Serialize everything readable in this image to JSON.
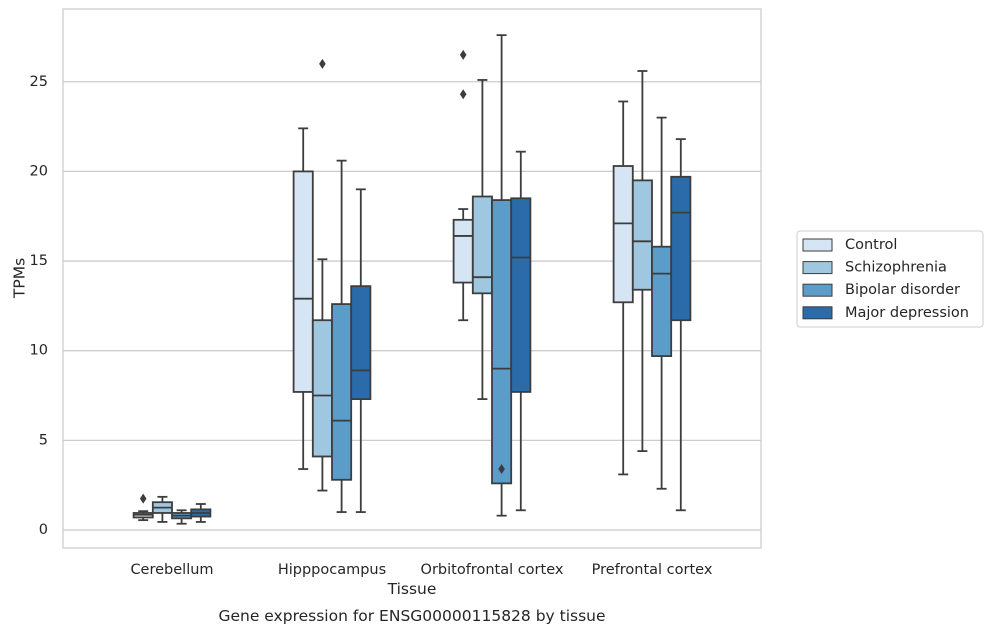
{
  "caption": "Gene expression for ENSG00000115828 by tissue",
  "chart_data": {
    "type": "box",
    "xlabel": "Tissue",
    "ylabel": "TPMs",
    "ylim": [
      -1,
      28.5
    ],
    "yticks": [
      0,
      5,
      10,
      15,
      20,
      25
    ],
    "grid": "horizontal",
    "legend_position": "right",
    "categories": [
      "Cerebellum",
      "Hipppocampus",
      "Orbitofrontal cortex",
      "Prefrontal cortex"
    ],
    "series": [
      {
        "name": "Control",
        "color": "#d6e5f3",
        "boxes": [
          {
            "whislo": 0.55,
            "q1": 0.7,
            "med": 0.85,
            "q3": 0.95,
            "whishi": 1.05,
            "fliers": [
              1.75
            ]
          },
          {
            "whislo": 3.4,
            "q1": 7.7,
            "med": 12.9,
            "q3": 20.0,
            "whishi": 22.4,
            "fliers": []
          },
          {
            "whislo": 11.7,
            "q1": 13.8,
            "med": 16.4,
            "q3": 17.3,
            "whishi": 17.9,
            "fliers": [
              24.3,
              26.5
            ]
          },
          {
            "whislo": 3.1,
            "q1": 12.7,
            "med": 17.1,
            "q3": 20.3,
            "whishi": 23.9,
            "fliers": []
          }
        ]
      },
      {
        "name": "Schizophrenia",
        "color": "#9fc7df",
        "boxes": [
          {
            "whislo": 0.45,
            "q1": 0.95,
            "med": 1.25,
            "q3": 1.55,
            "whishi": 1.85,
            "fliers": []
          },
          {
            "whislo": 2.2,
            "q1": 4.1,
            "med": 7.5,
            "q3": 11.7,
            "whishi": 15.1,
            "fliers": [
              26.0
            ]
          },
          {
            "whislo": 7.3,
            "q1": 13.2,
            "med": 14.1,
            "q3": 18.6,
            "whishi": 25.1,
            "fliers": []
          },
          {
            "whislo": 4.4,
            "q1": 13.4,
            "med": 16.1,
            "q3": 19.5,
            "whishi": 25.6,
            "fliers": []
          }
        ]
      },
      {
        "name": "Bipolar disorder",
        "color": "#5c9cc9",
        "boxes": [
          {
            "whislo": 0.35,
            "q1": 0.65,
            "med": 0.8,
            "q3": 0.95,
            "whishi": 1.1,
            "fliers": []
          },
          {
            "whislo": 1.0,
            "q1": 2.8,
            "med": 6.1,
            "q3": 12.6,
            "whishi": 20.6,
            "fliers": []
          },
          {
            "whislo": 0.8,
            "q1": 2.6,
            "med": 9.0,
            "q3": 18.4,
            "whishi": 27.6,
            "fliers": [
              3.4
            ]
          },
          {
            "whislo": 2.3,
            "q1": 9.7,
            "med": 14.3,
            "q3": 15.8,
            "whishi": 23.0,
            "fliers": []
          }
        ]
      },
      {
        "name": "Major depression",
        "color": "#2b6ba9",
        "boxes": [
          {
            "whislo": 0.45,
            "q1": 0.75,
            "med": 0.95,
            "q3": 1.15,
            "whishi": 1.45,
            "fliers": []
          },
          {
            "whislo": 1.0,
            "q1": 7.3,
            "med": 8.9,
            "q3": 13.6,
            "whishi": 19.0,
            "fliers": []
          },
          {
            "whislo": 1.1,
            "q1": 7.7,
            "med": 15.2,
            "q3": 18.5,
            "whishi": 21.1,
            "fliers": []
          },
          {
            "whislo": 1.1,
            "q1": 11.7,
            "med": 17.7,
            "q3": 19.7,
            "whishi": 21.8,
            "fliers": []
          }
        ]
      }
    ]
  }
}
